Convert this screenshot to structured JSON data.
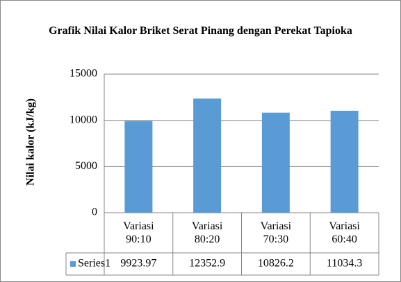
{
  "chart_data": {
    "type": "bar",
    "title": "Grafik Nilai Kalor Briket Serat Pinang dengan Perekat Tapioka",
    "y_label": "Nilai kalor (kJ/kg)",
    "categories": [
      "Variasi 90:10",
      "Variasi 80:20",
      "Variasi 70:30",
      "Variasi 60:40"
    ],
    "series": [
      {
        "name": "Series1",
        "color": "#5b9bd5",
        "values": [
          9923.97,
          12352.9,
          10826.2,
          11034.3
        ]
      }
    ],
    "ylim": [
      0,
      15000
    ],
    "yticks": [
      0,
      5000,
      10000,
      15000
    ],
    "grid": true,
    "legend": "data-table"
  }
}
